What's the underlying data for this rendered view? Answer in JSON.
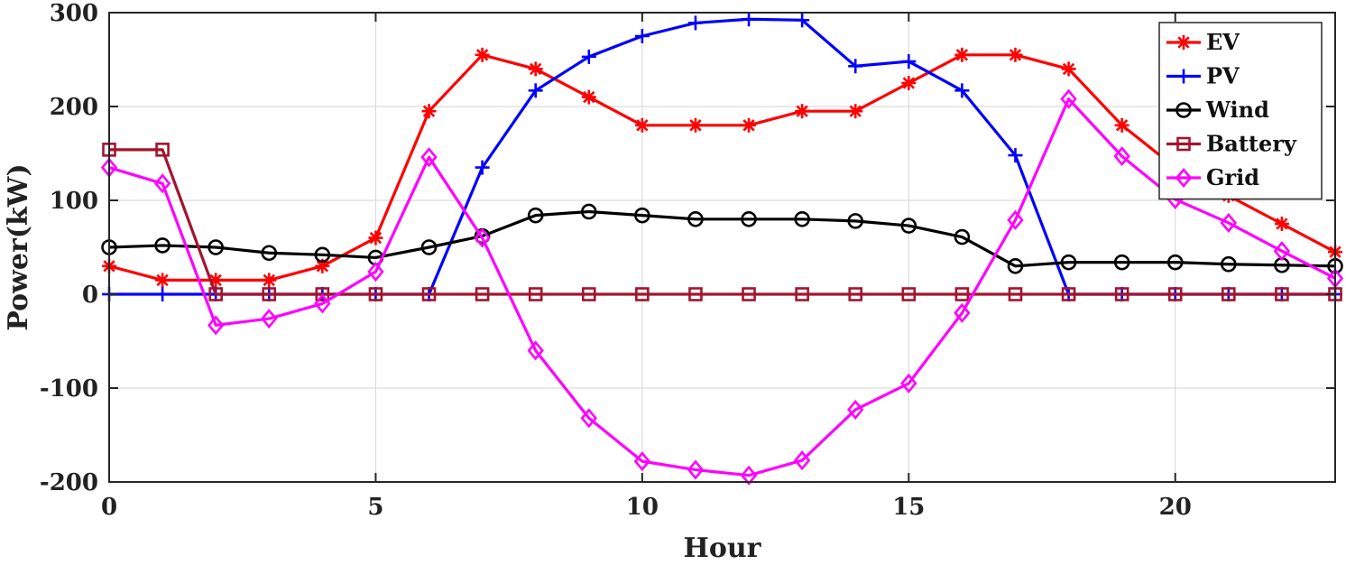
{
  "chart_data": {
    "type": "line",
    "xlabel": "Hour",
    "ylabel": "Power(kW)",
    "xlim": [
      0,
      23
    ],
    "ylim": [
      -200,
      300
    ],
    "xticks": [
      0,
      5,
      10,
      15,
      20
    ],
    "yticks": [
      -200,
      -100,
      0,
      100,
      200,
      300
    ],
    "grid": true,
    "legend_position": "top-right",
    "x": [
      0,
      1,
      2,
      3,
      4,
      5,
      6,
      7,
      8,
      9,
      10,
      11,
      12,
      13,
      14,
      15,
      16,
      17,
      18,
      19,
      20,
      21,
      22,
      23
    ],
    "series": [
      {
        "name": "EV",
        "color": "#ff0000",
        "marker": "asterisk",
        "values": [
          30,
          15,
          15,
          15,
          30,
          60,
          195,
          255,
          240,
          210,
          180,
          180,
          180,
          195,
          195,
          225,
          255,
          255,
          240,
          180,
          135,
          105,
          75,
          45
        ]
      },
      {
        "name": "PV",
        "color": "#0000ff",
        "marker": "plus",
        "values": [
          0,
          0,
          0,
          0,
          0,
          0,
          0,
          135,
          217,
          253,
          275,
          289,
          293,
          292,
          243,
          248,
          217,
          148,
          0,
          0,
          0,
          0,
          0,
          0
        ]
      },
      {
        "name": "Wind",
        "color": "#000000",
        "marker": "circle",
        "values": [
          50,
          52,
          50,
          44,
          42,
          39,
          50,
          62,
          84,
          88,
          84,
          80,
          80,
          80,
          78,
          73,
          61,
          30,
          34,
          34,
          34,
          32,
          31,
          30
        ]
      },
      {
        "name": "Battery",
        "color": "#a2142f",
        "marker": "square",
        "values": [
          154,
          154,
          0,
          0,
          0,
          0,
          0,
          0,
          0,
          0,
          0,
          0,
          0,
          0,
          0,
          0,
          0,
          0,
          0,
          0,
          0,
          0,
          0,
          0
        ]
      },
      {
        "name": "Grid",
        "color": "#ff00ff",
        "marker": "diamond",
        "values": [
          135,
          118,
          -33,
          -26,
          -10,
          24,
          146,
          60,
          -60,
          -132,
          -178,
          -187,
          -193,
          -177,
          -123,
          -95,
          -20,
          79,
          208,
          147,
          101,
          76,
          46,
          17
        ]
      }
    ]
  }
}
